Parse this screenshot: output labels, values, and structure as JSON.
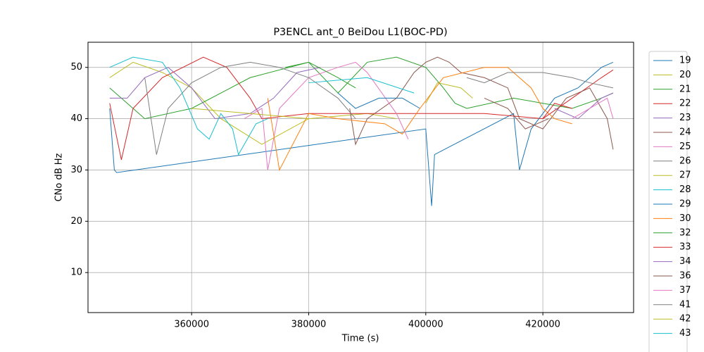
{
  "chart_data": {
    "type": "line",
    "title": "P3ENCL ant_0 BeiDou L1(BOC-PD)",
    "xlabel": "Time (s)",
    "ylabel": "CNo dB Hz",
    "xlim": [
      342300,
      435500
    ],
    "ylim": [
      2.2,
      54.9
    ],
    "xticks": [
      360000,
      380000,
      400000,
      420000
    ],
    "yticks": [
      10,
      20,
      30,
      40,
      50
    ],
    "grid": true,
    "legend": "outside right",
    "series": [
      {
        "name": "19",
        "color": "#1f77b4",
        "x": [
          346000,
          346800,
          347200,
          400000,
          401000,
          401500,
          415000,
          416000,
          418000,
          422000,
          426000,
          430000,
          432000
        ],
        "values": [
          42,
          30,
          29.5,
          38,
          23,
          33,
          41,
          30,
          38,
          44,
          46,
          50,
          51
        ]
      },
      {
        "name": "20",
        "color": "#bcbd22",
        "x": [
          346000,
          350000,
          355000,
          360000,
          365000,
          372000,
          380000,
          390000,
          395000
        ],
        "values": [
          48,
          51,
          49,
          46,
          40,
          35,
          40,
          41,
          40
        ]
      },
      {
        "name": "21",
        "color": "#2ca02c",
        "x": [
          346000,
          350000,
          352000,
          360000,
          370000,
          380000,
          385000,
          390000,
          395000,
          400000,
          403000,
          405000,
          407000,
          415000,
          420000,
          425000,
          430000,
          432000
        ],
        "values": [
          46,
          42,
          40,
          42,
          48,
          51,
          45,
          51,
          52,
          50,
          46,
          43,
          42,
          44,
          43,
          42,
          44,
          45
        ]
      },
      {
        "name": "22",
        "color": "#d62728",
        "x": [
          346000,
          348000,
          350000,
          355000,
          362000,
          366000,
          370000,
          372000,
          380000,
          400000,
          410000,
          420000,
          425000,
          430000,
          432000
        ],
        "values": [
          43,
          32,
          42,
          48,
          52,
          50,
          44,
          40,
          41,
          41,
          41,
          40,
          44,
          48,
          49.5
        ]
      },
      {
        "name": "23",
        "color": "#9467bd",
        "x": [
          346000,
          349000,
          352000,
          356000,
          360000,
          364000,
          370000,
          374000,
          378000,
          382000
        ],
        "values": [
          44,
          44,
          48,
          50,
          46,
          40,
          41,
          44,
          49,
          50
        ]
      },
      {
        "name": "24",
        "color": "#8c564b",
        "x": [
          387000,
          388000,
          390000,
          395000,
          398000,
          400000,
          402000,
          404000,
          406000,
          410000,
          414000,
          416000,
          420000,
          424000,
          428000,
          431000,
          432000
        ],
        "values": [
          42,
          35,
          40,
          44,
          49,
          51,
          52,
          51,
          49,
          48,
          46,
          40,
          38,
          44,
          46,
          40,
          34
        ]
      },
      {
        "name": "25",
        "color": "#e377c2",
        "x": [
          369000,
          372000,
          373000,
          375000,
          380000,
          385000,
          388000,
          390000,
          395000,
          397000
        ],
        "values": [
          40,
          42,
          30,
          42,
          48,
          50,
          51,
          49,
          41,
          36
        ]
      },
      {
        "name": "26",
        "color": "#7f7f7f",
        "x": [
          352000,
          354000,
          356000,
          360000,
          365000,
          370000,
          375000,
          380000,
          385000,
          388000
        ],
        "values": [
          48,
          33,
          42,
          47,
          50,
          51,
          50,
          48,
          44,
          40
        ]
      },
      {
        "name": "27",
        "color": "#bcbd22",
        "x": [
          400000,
          402000,
          406000,
          408000
        ],
        "values": [
          43,
          47,
          46,
          44
        ]
      },
      {
        "name": "28",
        "color": "#17becf",
        "x": [
          346000,
          350000,
          355000,
          358000,
          361000,
          363000,
          365000,
          367000,
          368000,
          371000,
          373000
        ],
        "values": [
          50,
          52,
          51,
          46,
          38,
          36,
          41,
          38,
          33,
          39,
          40
        ]
      },
      {
        "name": "29",
        "color": "#1f77b4",
        "x": [
          385000,
          388000,
          392000,
          396000,
          399000
        ],
        "values": [
          45,
          42,
          44,
          44,
          42
        ]
      },
      {
        "name": "30",
        "color": "#ff7f0e",
        "x": [
          373000,
          375000,
          380000,
          385000,
          393000,
          396000,
          399000,
          403000,
          410000,
          414000,
          418000,
          420000,
          422000,
          425000
        ],
        "values": [
          44,
          30,
          41,
          40,
          39,
          37,
          42,
          48,
          50,
          50,
          46,
          42,
          40,
          39
        ]
      },
      {
        "name": "32",
        "color": "#2ca02c",
        "x": [
          376000,
          380000,
          385000,
          388000
        ],
        "values": [
          50,
          51,
          48,
          46
        ]
      },
      {
        "name": "33",
        "color": "#d62728",
        "x": [
          420000,
          422000,
          425000
        ],
        "values": [
          40,
          43,
          42
        ]
      },
      {
        "name": "34",
        "color": "#9467bd",
        "x": [
          422000,
          426000,
          430000,
          432000
        ],
        "values": [
          42,
          40,
          44,
          45
        ]
      },
      {
        "name": "36",
        "color": "#8c564b",
        "x": [
          410000,
          414000,
          417000,
          421000
        ],
        "values": [
          44,
          42,
          38,
          40
        ]
      },
      {
        "name": "37",
        "color": "#e377c2",
        "x": [
          425000,
          428000,
          431000,
          432000
        ],
        "values": [
          40,
          42,
          44,
          40
        ]
      },
      {
        "name": "41",
        "color": "#7f7f7f",
        "x": [
          407000,
          410000,
          414000,
          420000,
          425000,
          428000,
          432000
        ],
        "values": [
          48,
          47,
          49,
          49,
          48,
          47,
          46
        ]
      },
      {
        "name": "42",
        "color": "#bcbd22",
        "x": [
          360000,
          370000,
          380000
        ],
        "values": [
          42,
          41,
          40
        ]
      },
      {
        "name": "43",
        "color": "#17becf",
        "x": [
          380000,
          390000,
          398000
        ],
        "values": [
          47,
          48,
          45
        ]
      }
    ]
  }
}
